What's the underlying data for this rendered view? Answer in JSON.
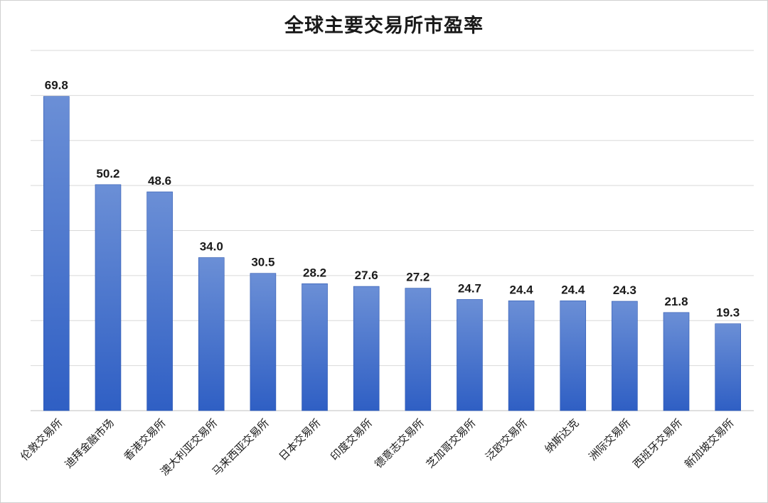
{
  "chart_data": {
    "type": "bar",
    "title": "全球主要交易所市盈率",
    "xlabel": "",
    "ylabel": "",
    "categories": [
      "伦敦交易所",
      "迪拜金融市场",
      "香港交易所",
      "澳大利亚交易所",
      "马来西亚交易所",
      "日本交易所",
      "印度交易所",
      "德意志交易所",
      "芝加哥交易所",
      "泛欧交易所",
      "纳斯达克",
      "洲际交易所",
      "西班牙交易所",
      "新加坡交易所"
    ],
    "values": [
      69.8,
      50.2,
      48.6,
      34.0,
      30.5,
      28.2,
      27.6,
      27.2,
      24.7,
      24.4,
      24.4,
      24.3,
      21.8,
      19.3
    ],
    "value_labels": [
      "69.8",
      "50.2",
      "48.6",
      "34.0",
      "30.5",
      "28.2",
      "27.6",
      "27.2",
      "24.7",
      "24.4",
      "24.4",
      "24.3",
      "21.8",
      "19.3"
    ],
    "ylim": [
      0,
      80
    ],
    "grid": true,
    "bar_color_top": "#6b8fd6",
    "bar_color_bottom": "#2f5fc4",
    "grid_color": "#d9d9d9"
  }
}
